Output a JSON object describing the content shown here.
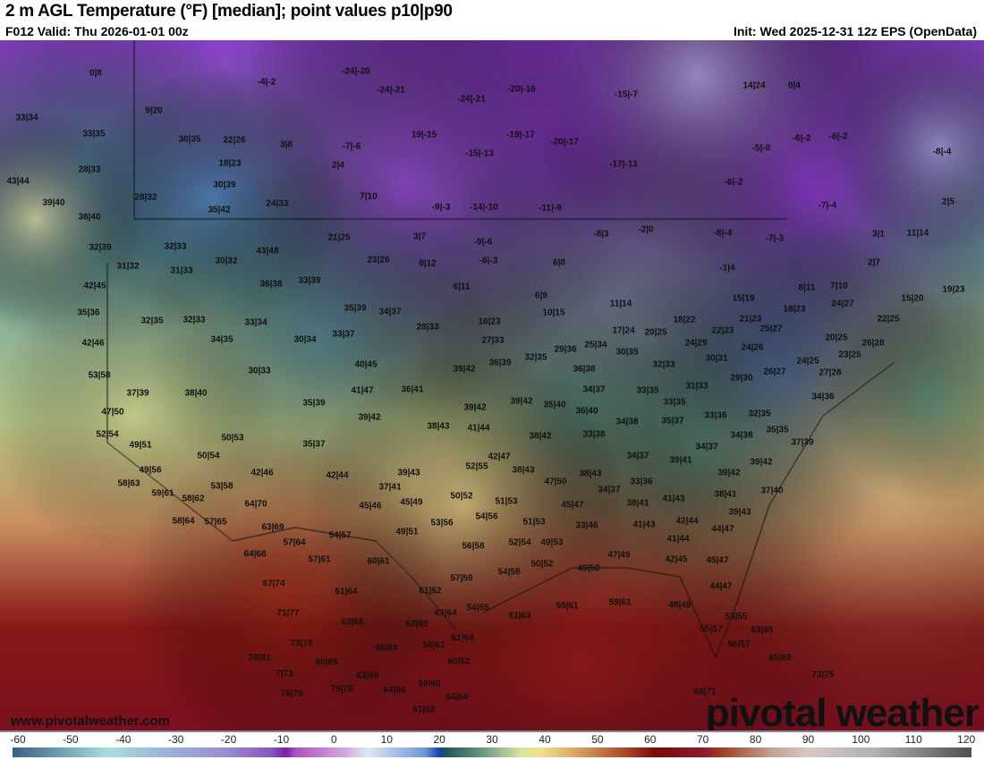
{
  "header": {
    "title": "2 m AGL Temperature (°F) [median]; point values p10|p90",
    "valid": "F012 Valid: Thu 2026-01-01 00z",
    "init": "Init: Wed 2025-12-31 12z EPS (OpenData)"
  },
  "footer": {
    "website": "www.pivotalweather.com",
    "brand": "pivotal weather"
  },
  "colorbar": {
    "unit": "°F",
    "ticks": [
      "-60",
      "-50",
      "-40",
      "-30",
      "-20",
      "-10",
      "0",
      "10",
      "20",
      "30",
      "40",
      "50",
      "60",
      "70",
      "80",
      "90",
      "100",
      "110",
      "120"
    ]
  },
  "point_values": [
    "0|8",
    "-4|-2",
    "-24|-20",
    "-24|-21",
    "-20|-16",
    "-15|-7",
    "14|24",
    "0|4",
    "33|34",
    "9|20",
    "-24|-21",
    "33|35",
    "30|35",
    "22|26",
    "3|8",
    "-7|-6",
    "19|-15",
    "-19|-17",
    "-20|-17",
    "-5|-0",
    "-6|-2",
    "-6|-2",
    "-8|-4",
    "28|33",
    "18|23",
    "2|4",
    "-15|-13",
    "-17|-13",
    "-6|-2",
    "43|44",
    "30|39",
    "28|32",
    "7|10",
    "39|40",
    "24|33",
    "35|42",
    "-9|-3",
    "-14|-10",
    "-11|-9",
    "-7|-4",
    "2|5",
    "38|40",
    "21|25",
    "3|7",
    "-9|-6",
    "-8|3",
    "-2|0",
    "-8|-4",
    "-7|-3",
    "3|1",
    "11|14",
    "32|39",
    "32|33",
    "43|48",
    "23|26",
    "8|12",
    "-6|-3",
    "6|8",
    "2|7",
    "31|32",
    "31|33",
    "30|32",
    "-1|4",
    "42|45",
    "36|38",
    "33|39",
    "6|11",
    "8|11",
    "7|10",
    "15|20",
    "19|23",
    "35|36",
    "32|35",
    "32|33",
    "33|34",
    "35|39",
    "34|37",
    "6|9",
    "11|14",
    "15|19",
    "18|23",
    "24|27",
    "22|25",
    "10|15",
    "16|23",
    "28|33",
    "18|22",
    "21|23",
    "42|46",
    "34|35",
    "30|34",
    "33|37",
    "17|24",
    "20|25",
    "22|23",
    "25|27",
    "20|25",
    "26|28",
    "27|33",
    "24|29",
    "24|26",
    "53|58",
    "30|33",
    "40|45",
    "39|42",
    "36|39",
    "32|35",
    "29|36",
    "25|34",
    "30|35",
    "36|38",
    "32|33",
    "30|31",
    "24|25",
    "23|25",
    "26|27",
    "29|30",
    "27|28",
    "37|39",
    "38|40",
    "41|47",
    "36|41",
    "34|37",
    "33|35",
    "31|33",
    "34|36",
    "35|39",
    "39|42",
    "39|42",
    "35|40",
    "33|35",
    "47|50",
    "39|42",
    "38|43",
    "41|44",
    "36|40",
    "34|38",
    "35|37",
    "33|36",
    "32|35",
    "35|35",
    "34|38",
    "52|54",
    "49|51",
    "50|53",
    "35|37",
    "38|42",
    "33|38",
    "37|39",
    "34|37",
    "49|56",
    "50|54",
    "42|46",
    "42|44",
    "39|43",
    "52|55",
    "38|43",
    "42|47",
    "34|37",
    "39|41",
    "39|42",
    "39|42",
    "58|63",
    "53|58",
    "37|41",
    "47|50",
    "38|43",
    "34|37",
    "33|36",
    "38|41",
    "37|40",
    "59|61",
    "58|62",
    "50|52",
    "51|53",
    "45|47",
    "38|41",
    "41|43",
    "64|70",
    "45|46",
    "45|49",
    "54|56",
    "39|43",
    "42|44",
    "44|47",
    "58|64",
    "57|65",
    "63|69",
    "53|56",
    "51|53",
    "33|46",
    "41|43",
    "57|64",
    "54|57",
    "49|51",
    "56|58",
    "52|54",
    "49|53",
    "41|44",
    "64|68",
    "57|61",
    "60|61",
    "50|52",
    "49|50",
    "47|49",
    "42|45",
    "45|47",
    "57|59",
    "54|58",
    "67|74",
    "61|64",
    "61|62",
    "44|47",
    "54|55",
    "61|63",
    "59|61",
    "59|61",
    "48|49",
    "53|55",
    "71|77",
    "63|66",
    "63|65",
    "63|64",
    "55|57",
    "63|65",
    "73|78",
    "66|68",
    "58|61",
    "61|64",
    "56|57",
    "78|81",
    "80|85",
    "60|62",
    "65|69",
    "7|73",
    "63|66",
    "59|60",
    "73|75",
    "75|79",
    "75|76",
    "64|66",
    "64|66",
    "68|71",
    "61|62"
  ]
}
